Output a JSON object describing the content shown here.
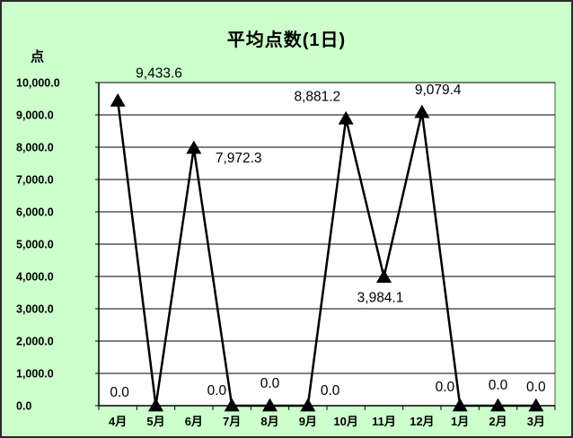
{
  "chart_data": {
    "type": "line",
    "title": "平均点数(1日)",
    "ylabel": "点",
    "xlabel": "",
    "categories": [
      "4月",
      "5月",
      "6月",
      "7月",
      "8月",
      "9月",
      "10月",
      "11月",
      "12月",
      "1月",
      "2月",
      "3月"
    ],
    "values": [
      9433.6,
      0,
      7972.3,
      0,
      0,
      0,
      8881.2,
      3984.1,
      9079.4,
      0,
      0,
      0
    ],
    "data_labels": [
      "9,433.6",
      "",
      "7,972.3",
      "0.0",
      "0.0",
      "0.0",
      "8,881.2",
      "3,984.1",
      "9,079.4",
      "0.0",
      "0.0",
      "0.0"
    ],
    "extra_labels": [
      "0.0"
    ],
    "y_ticks": [
      "0.0",
      "1,000.0",
      "2,000.0",
      "3,000.0",
      "4,000.0",
      "5,000.0",
      "6,000.0",
      "7,000.0",
      "8,000.0",
      "9,000.0",
      "10,000.0"
    ],
    "ylim": [
      0,
      10000
    ],
    "grid": true,
    "marker": "triangle",
    "colors": {
      "background": "#ccffcc",
      "plot_area": "#ffffff",
      "line": "#000000",
      "gridline": "#000000"
    }
  }
}
